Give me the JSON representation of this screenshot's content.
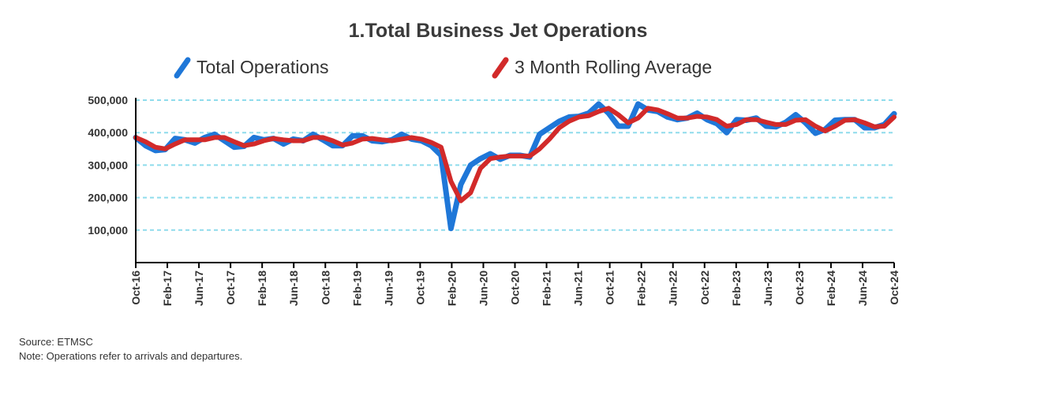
{
  "chart_data": {
    "type": "line",
    "title": "1.Total Business Jet Operations",
    "xlabel": "",
    "ylabel": "",
    "y_ticks": [
      "100,000",
      "200,000",
      "300,000",
      "400,000",
      "500,000"
    ],
    "ylim": [
      0,
      500000
    ],
    "x_ticks": [
      "Oct-16",
      "Feb-17",
      "Jun-17",
      "Oct-17",
      "Feb-18",
      "Jun-18",
      "Oct-18",
      "Feb-19",
      "Jun-19",
      "Oct-19",
      "Feb-20",
      "Jun-20",
      "Oct-20",
      "Feb-21",
      "Jun-21",
      "Oct-21",
      "Feb-22",
      "Jun-22",
      "Oct-22",
      "Feb-23",
      "Jun-23",
      "Oct-23",
      "Feb-24",
      "Jun-24",
      "Oct-24"
    ],
    "grid": "horizontal dashed",
    "legend_position": "top",
    "colors": {
      "total": "#1f77d8",
      "avg": "#d22a2a",
      "grid": "#8fdcec",
      "axis": "#000000"
    },
    "series": [
      {
        "name": "Total Operations",
        "key": "total",
        "values": [
          385000,
          360000,
          345000,
          348000,
          382000,
          378000,
          368000,
          385000,
          395000,
          375000,
          355000,
          358000,
          385000,
          378000,
          382000,
          365000,
          380000,
          375000,
          395000,
          378000,
          360000,
          360000,
          390000,
          390000,
          375000,
          372000,
          378000,
          395000,
          380000,
          375000,
          360000,
          330000,
          105000,
          240000,
          300000,
          320000,
          335000,
          318000,
          330000,
          330000,
          325000,
          395000,
          415000,
          435000,
          448000,
          450000,
          460000,
          488000,
          460000,
          420000,
          420000,
          488000,
          470000,
          465000,
          448000,
          440000,
          445000,
          460000,
          440000,
          428000,
          400000,
          440000,
          438000,
          445000,
          420000,
          418000,
          432000,
          455000,
          430000,
          398000,
          410000,
          438000,
          440000,
          440000,
          415000,
          415000,
          425000,
          458000
        ]
      },
      {
        "name": "3 Month Rolling Average",
        "key": "avg",
        "values": [
          385000,
          372000,
          355000,
          350000,
          365000,
          378000,
          378000,
          378000,
          385000,
          385000,
          372000,
          360000,
          365000,
          375000,
          382000,
          378000,
          375000,
          375000,
          385000,
          385000,
          375000,
          362000,
          368000,
          380000,
          382000,
          378000,
          375000,
          380000,
          385000,
          380000,
          370000,
          355000,
          250000,
          190000,
          215000,
          290000,
          320000,
          325000,
          328000,
          328000,
          328000,
          350000,
          380000,
          415000,
          435000,
          448000,
          452000,
          465000,
          475000,
          455000,
          430000,
          445000,
          475000,
          470000,
          458000,
          445000,
          445000,
          450000,
          448000,
          440000,
          420000,
          425000,
          440000,
          440000,
          432000,
          425000,
          425000,
          438000,
          440000,
          420000,
          405000,
          420000,
          438000,
          440000,
          430000,
          418000,
          420000,
          448000
        ]
      }
    ]
  },
  "footnotes": {
    "source": "Source: ETMSC",
    "note": "Note: Operations refer to arrivals and departures."
  }
}
